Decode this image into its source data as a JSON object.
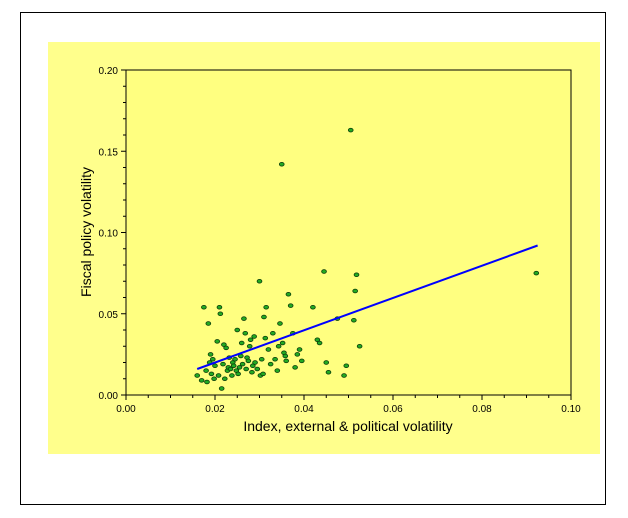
{
  "chart_data": {
    "type": "scatter",
    "xlabel": "Index, external & political volatility",
    "ylabel": "Fiscal policy volatility",
    "xlim": [
      0,
      0.1
    ],
    "ylim": [
      0,
      0.2
    ],
    "x_ticks": [
      "0.00",
      "0.02",
      "0.04",
      "0.06",
      "0.08",
      "0.10"
    ],
    "y_ticks": [
      "0.00",
      "0.05",
      "0.10",
      "0.15",
      "0.20"
    ],
    "grid": false,
    "legend": "none",
    "colors": {
      "panel": "#ffff8c",
      "plot_area": "#ffff80",
      "marker_fill": "#22aa22",
      "marker_edge": "#0a3a0a",
      "fit_line": "#0000ff"
    },
    "series": [
      {
        "points": [
          [
            0.016,
            0.012
          ],
          [
            0.017,
            0.009
          ],
          [
            0.0175,
            0.054
          ],
          [
            0.018,
            0.015
          ],
          [
            0.0182,
            0.008
          ],
          [
            0.0185,
            0.044
          ],
          [
            0.0188,
            0.02
          ],
          [
            0.019,
            0.025
          ],
          [
            0.0192,
            0.013
          ],
          [
            0.0195,
            0.022
          ],
          [
            0.0198,
            0.01
          ],
          [
            0.02,
            0.018
          ],
          [
            0.0205,
            0.033
          ],
          [
            0.0208,
            0.012
          ],
          [
            0.021,
            0.054
          ],
          [
            0.0212,
            0.05
          ],
          [
            0.0215,
            0.004
          ],
          [
            0.0218,
            0.019
          ],
          [
            0.022,
            0.031
          ],
          [
            0.0222,
            0.01
          ],
          [
            0.0225,
            0.029
          ],
          [
            0.0228,
            0.015
          ],
          [
            0.023,
            0.017
          ],
          [
            0.0232,
            0.023
          ],
          [
            0.0235,
            0.016
          ],
          [
            0.0238,
            0.012
          ],
          [
            0.024,
            0.02
          ],
          [
            0.0242,
            0.018
          ],
          [
            0.0245,
            0.022
          ],
          [
            0.0248,
            0.015
          ],
          [
            0.025,
            0.04
          ],
          [
            0.0252,
            0.013
          ],
          [
            0.0255,
            0.017
          ],
          [
            0.0258,
            0.024
          ],
          [
            0.026,
            0.032
          ],
          [
            0.0262,
            0.019
          ],
          [
            0.0265,
            0.047
          ],
          [
            0.0268,
            0.038
          ],
          [
            0.027,
            0.016
          ],
          [
            0.0272,
            0.023
          ],
          [
            0.0275,
            0.021
          ],
          [
            0.0278,
            0.03
          ],
          [
            0.028,
            0.034
          ],
          [
            0.0283,
            0.014
          ],
          [
            0.0285,
            0.018
          ],
          [
            0.0288,
            0.036
          ],
          [
            0.029,
            0.02
          ],
          [
            0.0295,
            0.016
          ],
          [
            0.03,
            0.07
          ],
          [
            0.0302,
            0.012
          ],
          [
            0.0305,
            0.022
          ],
          [
            0.0308,
            0.013
          ],
          [
            0.031,
            0.048
          ],
          [
            0.0313,
            0.035
          ],
          [
            0.0315,
            0.054
          ],
          [
            0.032,
            0.028
          ],
          [
            0.0325,
            0.019
          ],
          [
            0.033,
            0.038
          ],
          [
            0.0335,
            0.022
          ],
          [
            0.034,
            0.015
          ],
          [
            0.0343,
            0.03
          ],
          [
            0.0346,
            0.044
          ],
          [
            0.035,
            0.142
          ],
          [
            0.0352,
            0.032
          ],
          [
            0.0355,
            0.026
          ],
          [
            0.0358,
            0.024
          ],
          [
            0.036,
            0.021
          ],
          [
            0.0365,
            0.062
          ],
          [
            0.037,
            0.055
          ],
          [
            0.0375,
            0.038
          ],
          [
            0.038,
            0.017
          ],
          [
            0.0385,
            0.025
          ],
          [
            0.039,
            0.028
          ],
          [
            0.0395,
            0.021
          ],
          [
            0.042,
            0.054
          ],
          [
            0.043,
            0.034
          ],
          [
            0.0435,
            0.032
          ],
          [
            0.0445,
            0.076
          ],
          [
            0.045,
            0.02
          ],
          [
            0.0455,
            0.014
          ],
          [
            0.0475,
            0.047
          ],
          [
            0.049,
            0.012
          ],
          [
            0.0495,
            0.018
          ],
          [
            0.0505,
            0.163
          ],
          [
            0.0512,
            0.046
          ],
          [
            0.0515,
            0.064
          ],
          [
            0.0518,
            0.074
          ],
          [
            0.0525,
            0.03
          ],
          [
            0.0922,
            0.075
          ]
        ]
      }
    ],
    "fit_line": {
      "x": [
        0.016,
        0.0925
      ],
      "y": [
        0.016,
        0.092
      ]
    }
  }
}
